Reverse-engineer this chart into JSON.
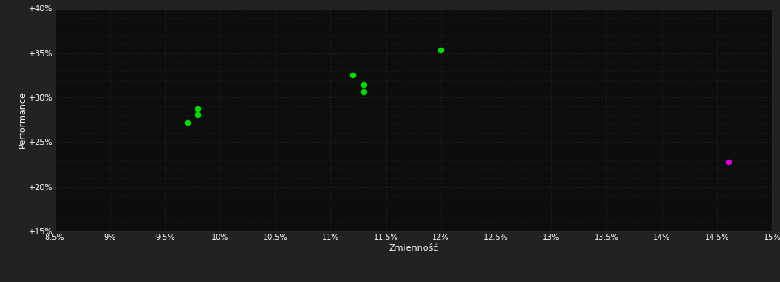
{
  "background_color": "#222222",
  "plot_bg_color": "#0d0d0d",
  "grid_color": "#2a2a2a",
  "text_color": "#ffffff",
  "xlabel": "Zmienność",
  "ylabel": "Performance",
  "xlim": [
    0.085,
    0.15
  ],
  "ylim": [
    0.15,
    0.4
  ],
  "xticks": [
    0.085,
    0.09,
    0.095,
    0.1,
    0.105,
    0.11,
    0.115,
    0.12,
    0.125,
    0.13,
    0.135,
    0.14,
    0.145,
    0.15
  ],
  "xtick_labels": [
    "8.5%",
    "9%",
    "9.5%",
    "10%",
    "10.5%",
    "11%",
    "11.5%",
    "12%",
    "12.5%",
    "13%",
    "13.5%",
    "14%",
    "14.5%",
    "15%"
  ],
  "yticks": [
    0.15,
    0.2,
    0.25,
    0.3,
    0.35,
    0.4
  ],
  "ytick_labels": [
    "+15%",
    "+20%",
    "+25%",
    "+30%",
    "+35%",
    "+40%"
  ],
  "green_points": [
    [
      0.098,
      0.287
    ],
    [
      0.098,
      0.281
    ],
    [
      0.097,
      0.272
    ],
    [
      0.112,
      0.325
    ],
    [
      0.113,
      0.315
    ],
    [
      0.113,
      0.306
    ],
    [
      0.12,
      0.353
    ]
  ],
  "magenta_points": [
    [
      0.146,
      0.228
    ]
  ],
  "green_color": "#00dd00",
  "magenta_color": "#dd00dd",
  "marker_size": 30,
  "font_size_ticks": 7,
  "font_size_label": 8
}
